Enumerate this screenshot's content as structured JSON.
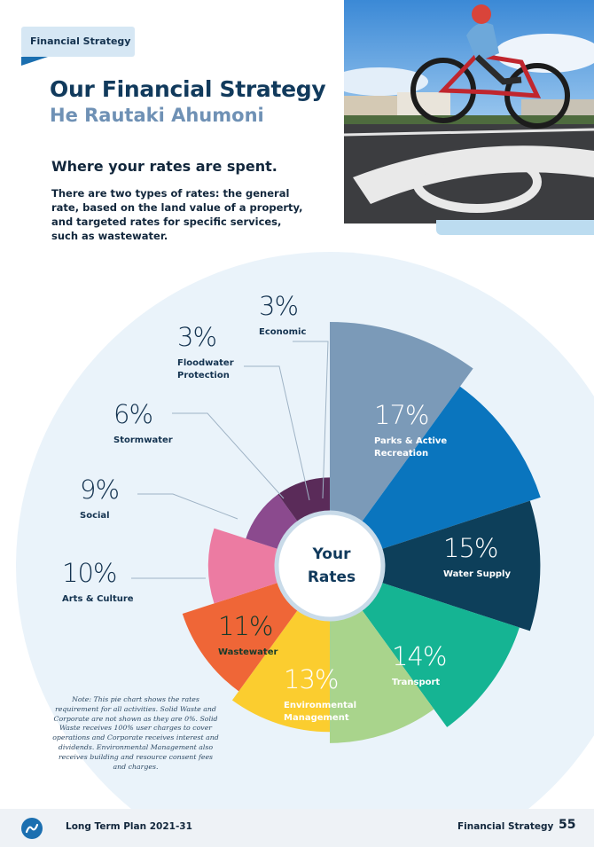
{
  "tag": "Financial Strategy",
  "title_en": "Our Financial Strategy",
  "title_mi": "He Rautaki Ahumoni",
  "section_title": "Where your rates are spent.",
  "intro": "There are two types of rates: the general rate, based on the land value of a property, and targeted rates for specific services, such as wastewater.",
  "center_label": [
    "Your",
    "Rates"
  ],
  "chart_data": {
    "type": "pie",
    "title": "",
    "slices": [
      {
        "label": "Parks & Active Recreation",
        "pct_text": "17%",
        "value": 17,
        "color": "#7b9ab8"
      },
      {
        "label": "Water Supply",
        "pct_text": "15%",
        "value": 15,
        "color": "#0a75be"
      },
      {
        "label": "Transport",
        "pct_text": "14%",
        "value": 14,
        "color": "#0d3f5a"
      },
      {
        "label": "Environmental Management",
        "pct_text": "13%",
        "value": 13,
        "color": "#15b493"
      },
      {
        "label": "Wastewater",
        "pct_text": "11%",
        "value": 11,
        "color": "#a9d48c"
      },
      {
        "label": "Arts & Culture",
        "pct_text": "10%",
        "value": 10,
        "color": "#fbcd2f"
      },
      {
        "label": "Social",
        "pct_text": "9%",
        "value": 9,
        "color": "#ef6637"
      },
      {
        "label": "Stormwater",
        "pct_text": "6%",
        "value": 6,
        "color": "#ec7ba2"
      },
      {
        "label": "Floodwater Protection",
        "pct_text": "3%",
        "value": 3,
        "color": "#8b4a8e"
      },
      {
        "label": "Economic",
        "pct_text": "3%",
        "value": 3,
        "color": "#5a2b59"
      }
    ]
  },
  "note": "Note: This pie chart shows the rates requirement for all activities. Solid Waste and Corporate are not shown as they are 0%. Solid Waste receives 100% user charges to cover operations and Corporate receives interest and dividends. Environmental Management also receives building and resource consent fees and charges.",
  "footer": {
    "plan": "Long Term Plan 2021-31",
    "section": "Financial Strategy",
    "page": "55"
  }
}
